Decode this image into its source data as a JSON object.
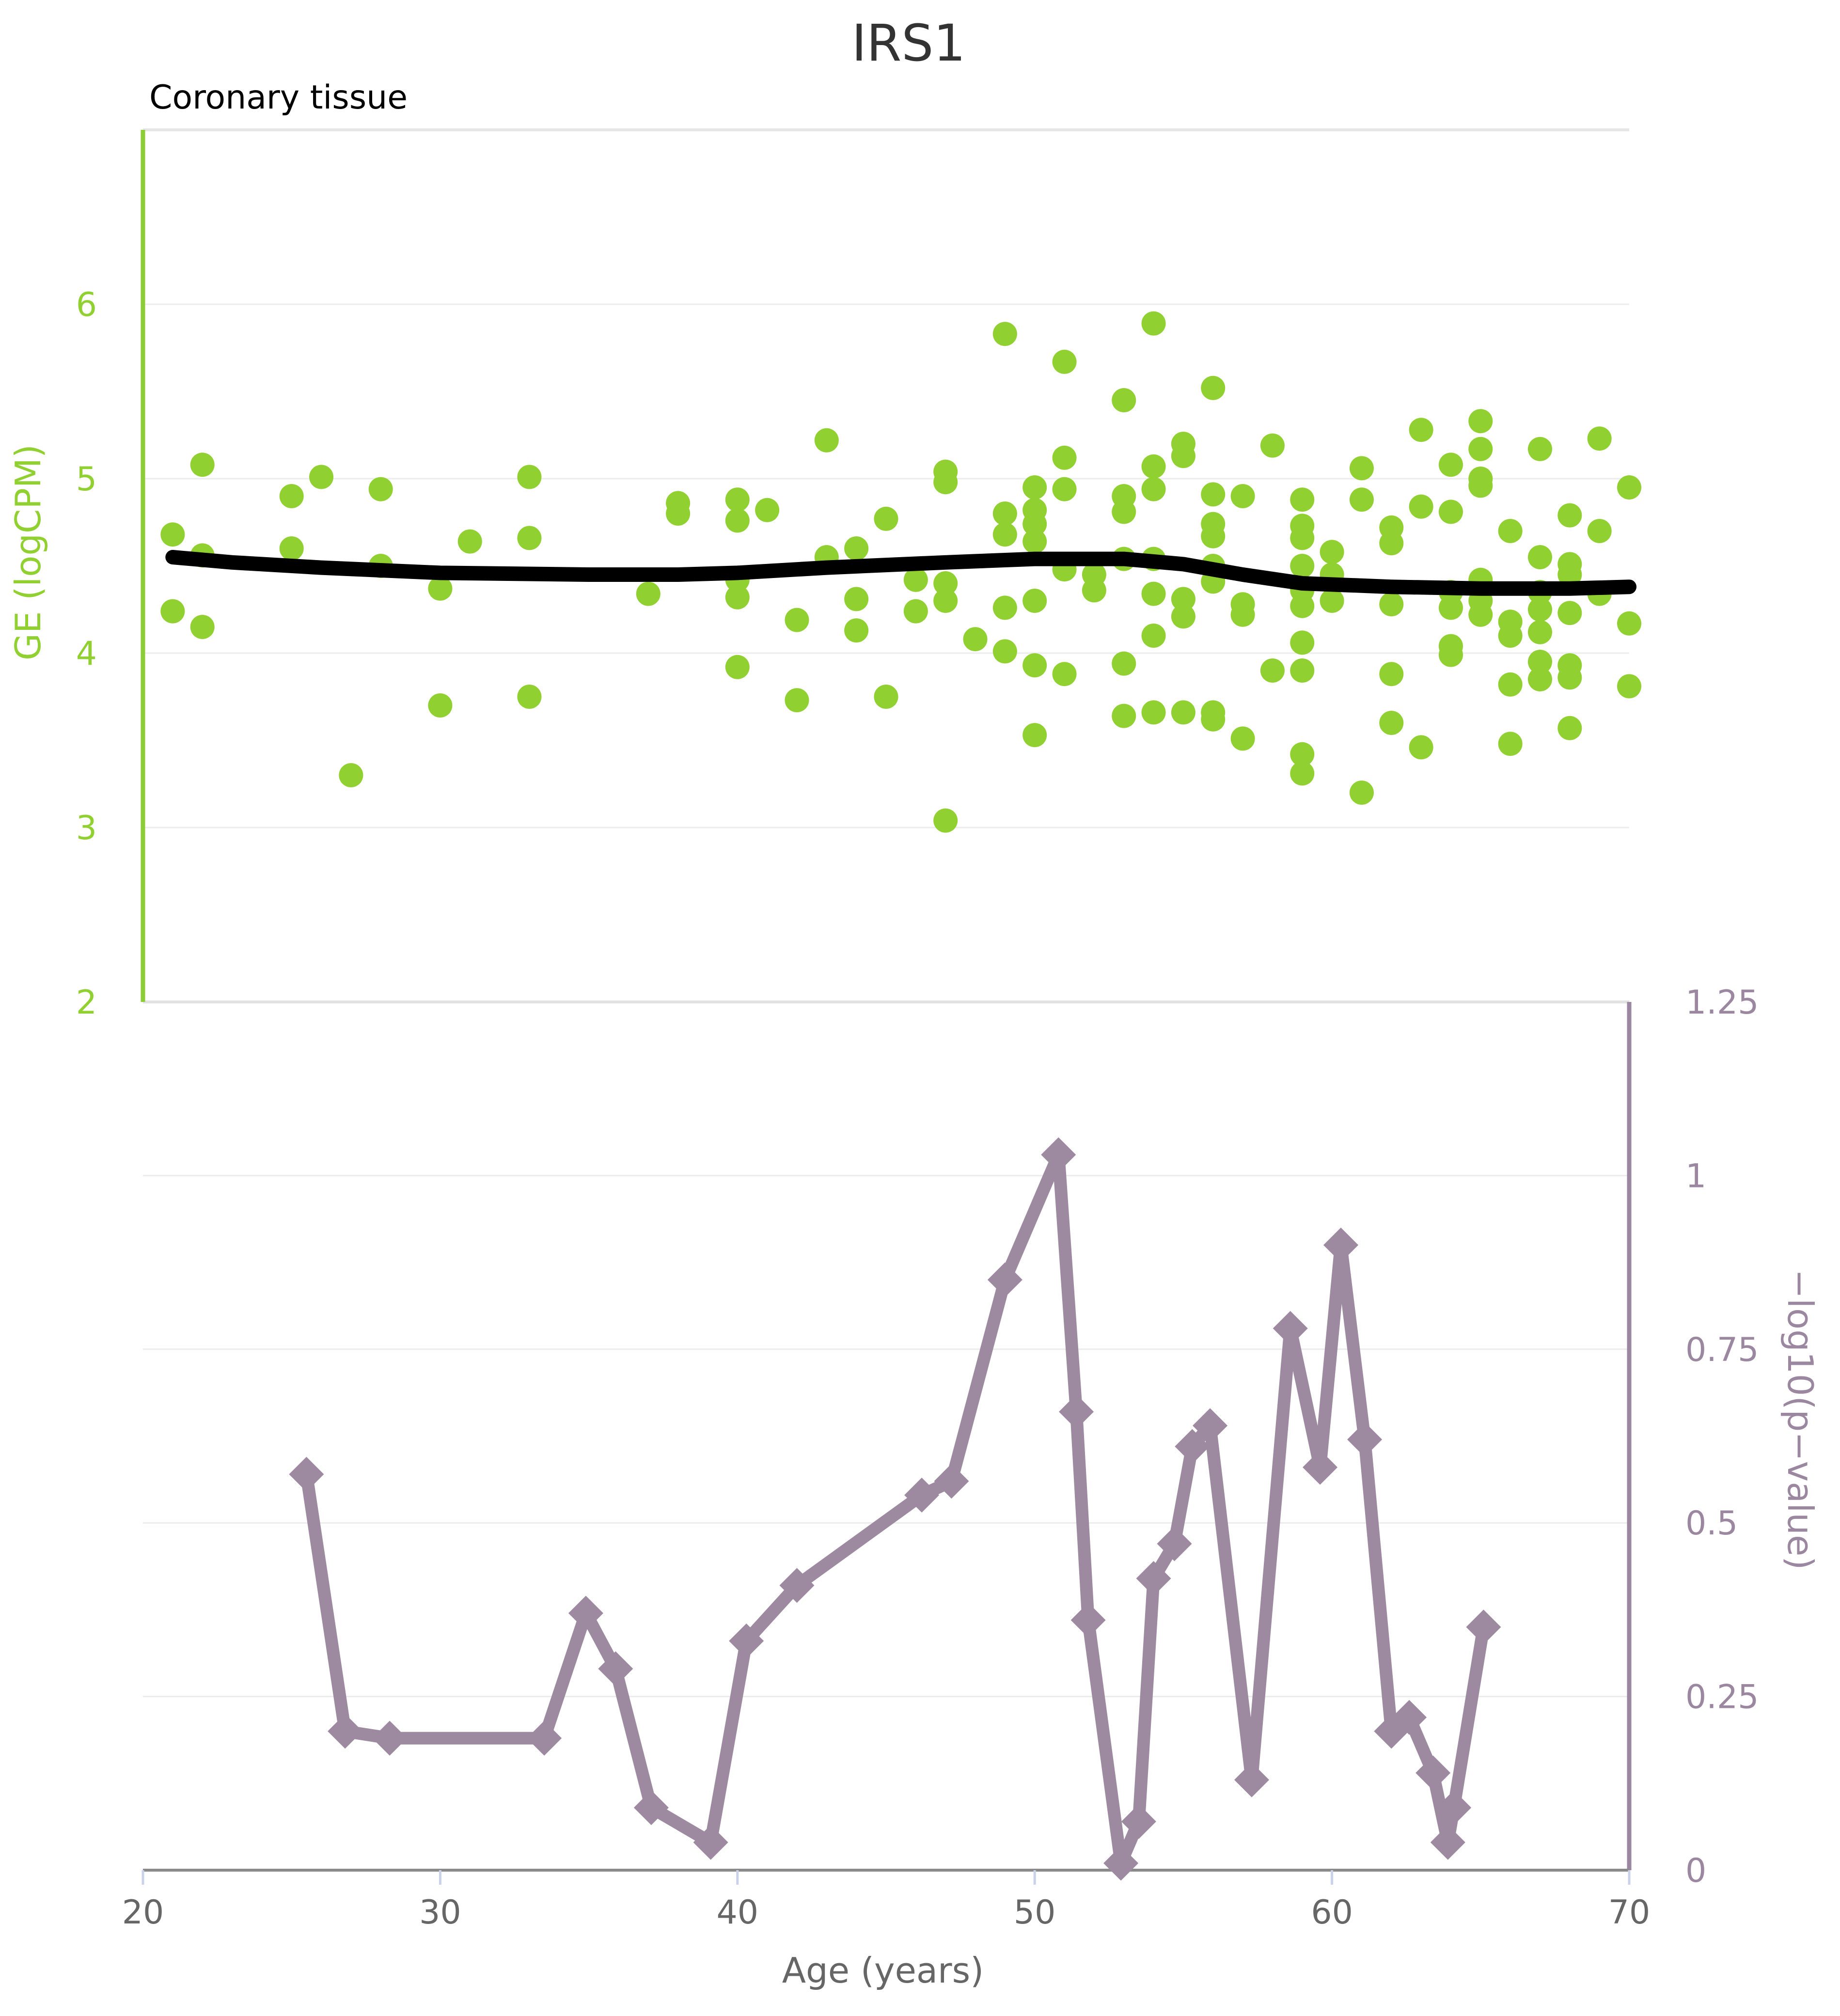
{
  "chart_data": {
    "title": "IRS1",
    "subtitle": "Coronary tissue",
    "xlabel": "Age (years)",
    "xlim": [
      20,
      70
    ],
    "xticks": [
      "20",
      "30",
      "40",
      "50",
      "60",
      "70"
    ],
    "grid": true,
    "panels": [
      {
        "type": "scatter",
        "ylabel": "GE (logCPM)",
        "ylim": [
          2,
          7
        ],
        "yticks": [
          "2",
          "3",
          "4",
          "5",
          "6"
        ],
        "axis_color": "#8ccc36",
        "series": [
          {
            "type": "scatter",
            "color": "#90d030",
            "points": [
              [
                21,
                4.68
              ],
              [
                21,
                4.24
              ],
              [
                22,
                5.08
              ],
              [
                22,
                4.56
              ],
              [
                22,
                4.15
              ],
              [
                25,
                4.9
              ],
              [
                25,
                4.6
              ],
              [
                26,
                5.01
              ],
              [
                27,
                3.3
              ],
              [
                28,
                4.94
              ],
              [
                28,
                4.5
              ],
              [
                30,
                4.37
              ],
              [
                30,
                3.7
              ],
              [
                31,
                4.64
              ],
              [
                33,
                5.01
              ],
              [
                33,
                4.66
              ],
              [
                33,
                3.75
              ],
              [
                37,
                4.34
              ],
              [
                38,
                4.86
              ],
              [
                38,
                4.8
              ],
              [
                40,
                4.88
              ],
              [
                40,
                4.76
              ],
              [
                40,
                4.42
              ],
              [
                40,
                4.32
              ],
              [
                40,
                3.92
              ],
              [
                41,
                4.82
              ],
              [
                42,
                4.19
              ],
              [
                42,
                3.73
              ],
              [
                43,
                5.22
              ],
              [
                43,
                4.55
              ],
              [
                44,
                4.6
              ],
              [
                44,
                4.31
              ],
              [
                44,
                4.13
              ],
              [
                45,
                4.77
              ],
              [
                45,
                3.75
              ],
              [
                46,
                4.42
              ],
              [
                46,
                4.24
              ],
              [
                47,
                5.04
              ],
              [
                47,
                4.98
              ],
              [
                47,
                4.4
              ],
              [
                47,
                4.3
              ],
              [
                47,
                3.04
              ],
              [
                48,
                4.08
              ],
              [
                49,
                5.83
              ],
              [
                49,
                4.8
              ],
              [
                49,
                4.68
              ],
              [
                49,
                4.26
              ],
              [
                49,
                4.01
              ],
              [
                50,
                4.95
              ],
              [
                50,
                4.82
              ],
              [
                50,
                4.74
              ],
              [
                50,
                4.64
              ],
              [
                50,
                4.3
              ],
              [
                50,
                3.93
              ],
              [
                50,
                3.53
              ],
              [
                51,
                5.67
              ],
              [
                51,
                5.12
              ],
              [
                51,
                4.94
              ],
              [
                51,
                4.48
              ],
              [
                51,
                3.88
              ],
              [
                52,
                4.45
              ],
              [
                52,
                4.36
              ],
              [
                53,
                5.45
              ],
              [
                53,
                4.9
              ],
              [
                53,
                4.81
              ],
              [
                53,
                4.54
              ],
              [
                53,
                3.94
              ],
              [
                53,
                3.64
              ],
              [
                54,
                5.89
              ],
              [
                54,
                5.07
              ],
              [
                54,
                4.94
              ],
              [
                54,
                4.54
              ],
              [
                54,
                4.34
              ],
              [
                54,
                4.1
              ],
              [
                54,
                3.66
              ],
              [
                55,
                5.2
              ],
              [
                55,
                5.13
              ],
              [
                55,
                4.31
              ],
              [
                55,
                4.21
              ],
              [
                55,
                3.66
              ],
              [
                56,
                5.52
              ],
              [
                56,
                4.91
              ],
              [
                56,
                4.74
              ],
              [
                56,
                4.67
              ],
              [
                56,
                4.5
              ],
              [
                56,
                4.41
              ],
              [
                56,
                3.66
              ],
              [
                56,
                3.62
              ],
              [
                57,
                4.9
              ],
              [
                57,
                4.28
              ],
              [
                57,
                4.22
              ],
              [
                57,
                3.51
              ],
              [
                58,
                5.19
              ],
              [
                58,
                3.9
              ],
              [
                59,
                4.88
              ],
              [
                59,
                4.73
              ],
              [
                59,
                4.66
              ],
              [
                59,
                4.5
              ],
              [
                59,
                4.36
              ],
              [
                59,
                4.27
              ],
              [
                59,
                4.06
              ],
              [
                59,
                3.9
              ],
              [
                59,
                3.42
              ],
              [
                59,
                3.31
              ],
              [
                60,
                4.58
              ],
              [
                60,
                4.45
              ],
              [
                60,
                4.3
              ],
              [
                61,
                5.06
              ],
              [
                61,
                4.88
              ],
              [
                61,
                3.2
              ],
              [
                62,
                4.72
              ],
              [
                62,
                4.63
              ],
              [
                62,
                4.28
              ],
              [
                62,
                3.88
              ],
              [
                62,
                3.6
              ],
              [
                63,
                5.28
              ],
              [
                63,
                4.84
              ],
              [
                63,
                3.46
              ],
              [
                64,
                5.08
              ],
              [
                64,
                4.81
              ],
              [
                64,
                4.35
              ],
              [
                64,
                4.26
              ],
              [
                64,
                4.04
              ],
              [
                64,
                3.99
              ],
              [
                65,
                5.33
              ],
              [
                65,
                5.17
              ],
              [
                65,
                5.0
              ],
              [
                65,
                4.96
              ],
              [
                65,
                4.42
              ],
              [
                65,
                4.3
              ],
              [
                65,
                4.22
              ],
              [
                66,
                4.7
              ],
              [
                66,
                4.18
              ],
              [
                66,
                4.1
              ],
              [
                66,
                3.82
              ],
              [
                66,
                3.48
              ],
              [
                67,
                5.17
              ],
              [
                67,
                4.55
              ],
              [
                67,
                4.35
              ],
              [
                67,
                4.25
              ],
              [
                67,
                4.12
              ],
              [
                67,
                3.95
              ],
              [
                67,
                3.85
              ],
              [
                68,
                4.79
              ],
              [
                68,
                4.51
              ],
              [
                68,
                4.45
              ],
              [
                68,
                4.23
              ],
              [
                68,
                3.93
              ],
              [
                68,
                3.86
              ],
              [
                68,
                3.57
              ],
              [
                69,
                5.23
              ],
              [
                69,
                4.7
              ],
              [
                69,
                4.34
              ],
              [
                70,
                4.95
              ],
              [
                70,
                4.17
              ],
              [
                70,
                3.81
              ]
            ]
          },
          {
            "type": "line",
            "color": "#000000",
            "points": [
              [
                21,
                4.55
              ],
              [
                23,
                4.52
              ],
              [
                26,
                4.49
              ],
              [
                30,
                4.46
              ],
              [
                35,
                4.45
              ],
              [
                38,
                4.45
              ],
              [
                40,
                4.46
              ],
              [
                43,
                4.49
              ],
              [
                47,
                4.52
              ],
              [
                50,
                4.54
              ],
              [
                53,
                4.54
              ],
              [
                55,
                4.51
              ],
              [
                57,
                4.45
              ],
              [
                59,
                4.4
              ],
              [
                62,
                4.38
              ],
              [
                65,
                4.37
              ],
              [
                68,
                4.37
              ],
              [
                70,
                4.38
              ]
            ]
          }
        ]
      },
      {
        "type": "line",
        "ylabel": "−log10(p−value)",
        "ylim": [
          0,
          1.25
        ],
        "yticks": [
          "0",
          "0.25",
          "0.5",
          "0.75",
          "1",
          "1.25"
        ],
        "axis_color": "#9b87a0",
        "series": [
          {
            "type": "line",
            "marker": "diamond",
            "color": "#9d8aa0",
            "points": [
              [
                25.5,
                0.57
              ],
              [
                26.8,
                0.2
              ],
              [
                28.3,
                0.19
              ],
              [
                33.5,
                0.19
              ],
              [
                34.9,
                0.37
              ],
              [
                35.9,
                0.29
              ],
              [
                37.1,
                0.09
              ],
              [
                39.1,
                0.04
              ],
              [
                40.3,
                0.33
              ],
              [
                42.0,
                0.41
              ],
              [
                46.2,
                0.54
              ],
              [
                47.2,
                0.56
              ],
              [
                49.0,
                0.85
              ],
              [
                50.8,
                1.03
              ],
              [
                51.4,
                0.66
              ],
              [
                51.8,
                0.36
              ],
              [
                52.9,
                0.01
              ],
              [
                53.5,
                0.07
              ],
              [
                54.0,
                0.42
              ],
              [
                54.7,
                0.47
              ],
              [
                55.3,
                0.61
              ],
              [
                55.9,
                0.64
              ],
              [
                57.3,
                0.13
              ],
              [
                58.6,
                0.78
              ],
              [
                59.6,
                0.58
              ],
              [
                60.3,
                0.9
              ],
              [
                61.1,
                0.62
              ],
              [
                62.0,
                0.2
              ],
              [
                62.6,
                0.22
              ],
              [
                63.4,
                0.14
              ],
              [
                63.9,
                0.04
              ],
              [
                64.1,
                0.09
              ],
              [
                65.1,
                0.35
              ]
            ]
          }
        ]
      }
    ]
  }
}
